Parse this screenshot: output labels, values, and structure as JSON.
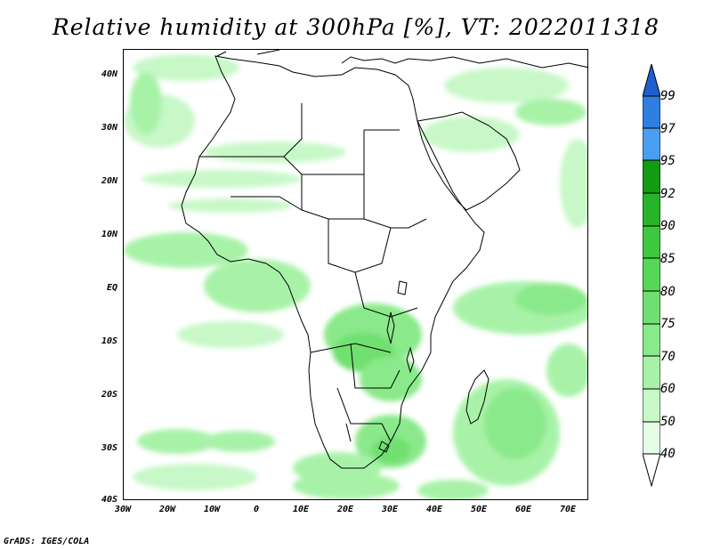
{
  "title": "Relative humidity at 300hPa [%], VT: 2022011318",
  "credit": "GrADS: IGES/COLA",
  "lat_ticks": [
    "40N",
    "30N",
    "20N",
    "10N",
    "EQ",
    "10S",
    "20S",
    "30S",
    "40S"
  ],
  "lon_ticks": [
    "30W",
    "20W",
    "10W",
    "0",
    "10E",
    "20E",
    "30E",
    "40E",
    "50E",
    "60E",
    "70E"
  ],
  "colorbar": {
    "levels": [
      "99",
      "97",
      "95",
      "92",
      "90",
      "85",
      "80",
      "75",
      "70",
      "60",
      "50",
      "40"
    ],
    "colors": [
      "#1f5fcf",
      "#2f7fe0",
      "#4a9ef0",
      "#139b13",
      "#28b428",
      "#3ec83e",
      "#56d756",
      "#6fe06f",
      "#8ae98a",
      "#a8f2a8",
      "#c8f8c8",
      "#e6fde6"
    ]
  },
  "map": {
    "lon_range": [
      -30,
      75
    ],
    "lat_range": [
      -40,
      45
    ],
    "field": "relative humidity 300hPa"
  }
}
